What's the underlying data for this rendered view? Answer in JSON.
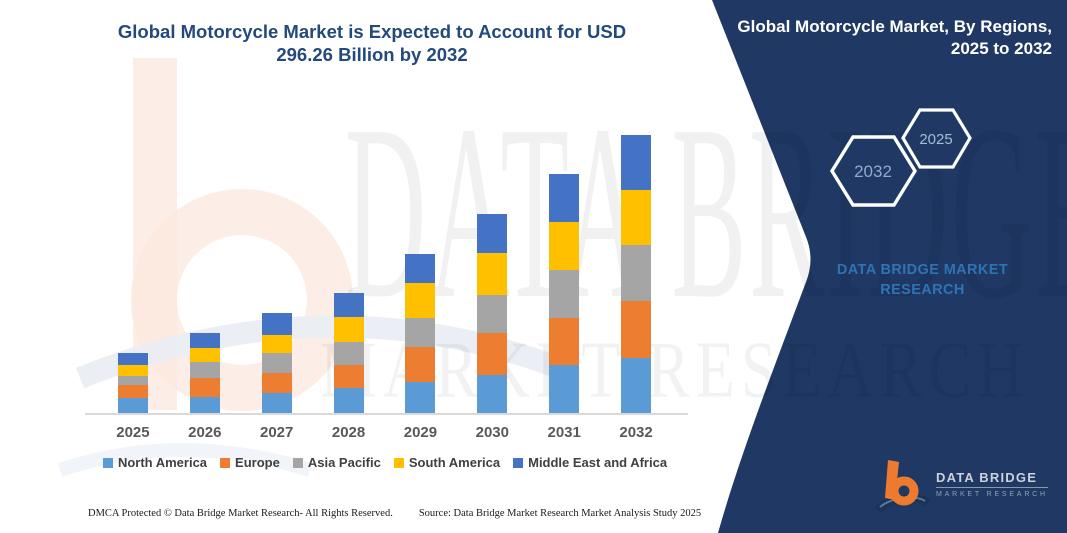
{
  "header": {
    "title": "Global Motorcycle Market is Expected to Account for USD 296.26 Billion by 2032"
  },
  "panel": {
    "title": "Global Motorcycle Market, By Regions, 2025 to 2032",
    "hexagon_front_label": "2032",
    "hexagon_back_label": "2025",
    "brand_name": "DATA BRIDGE MARKET RESEARCH",
    "background_color": "#1f3864"
  },
  "watermark": {
    "line1": "DATA BRIDGE",
    "line2": "MARKET RESEARCH"
  },
  "logo": {
    "name": "DATA BRIDGE",
    "tagline": "MARKET RESEARCH"
  },
  "footer": {
    "dmca": "DMCA Protected © Data Bridge Market Research-  All Rights Reserved.",
    "source": "Source: Data Bridge Market Research  Market Analysis Study 2025"
  },
  "chart_data": {
    "type": "bar",
    "stacked": true,
    "title": "Global Motorcycle Market is Expected to Account for USD 296.26 Billion by 2032",
    "unit": "USD Billion",
    "categories": [
      "2025",
      "2026",
      "2027",
      "2028",
      "2029",
      "2030",
      "2031",
      "2032"
    ],
    "series": [
      {
        "name": "North America",
        "color": "#5B9BD5",
        "values": [
          15.7,
          17.4,
          21.0,
          26.3,
          33.4,
          40.5,
          51.2,
          58.9
        ]
      },
      {
        "name": "Europe",
        "color": "#ED7D31",
        "values": [
          14.2,
          19.5,
          21.3,
          24.8,
          37.3,
          44.4,
          50.4,
          60.4
        ]
      },
      {
        "name": "Asia Pacific",
        "color": "#A5A5A5",
        "values": [
          9.9,
          17.8,
          21.3,
          24.2,
          30.2,
          40.8,
          50.8,
          59.7
        ]
      },
      {
        "name": "South America",
        "color": "#FFC000",
        "values": [
          11.4,
          14.2,
          19.5,
          26.6,
          37.3,
          44.4,
          51.5,
          58.6
        ]
      },
      {
        "name": "Middle East and Africa",
        "color": "#4472C4",
        "values": [
          12.5,
          16.0,
          23.8,
          26.3,
          30.9,
          41.6,
          50.4,
          58.66
        ]
      }
    ],
    "estimated_totals": [
      63.7,
      84.9,
      106.9,
      128.2,
      169.1,
      211.7,
      254.3,
      296.26
    ],
    "highlight_total_2032": 296.26,
    "xlabel": "",
    "ylabel": "",
    "y_axis_visible": false,
    "grid": false,
    "legend_position": "bottom"
  }
}
